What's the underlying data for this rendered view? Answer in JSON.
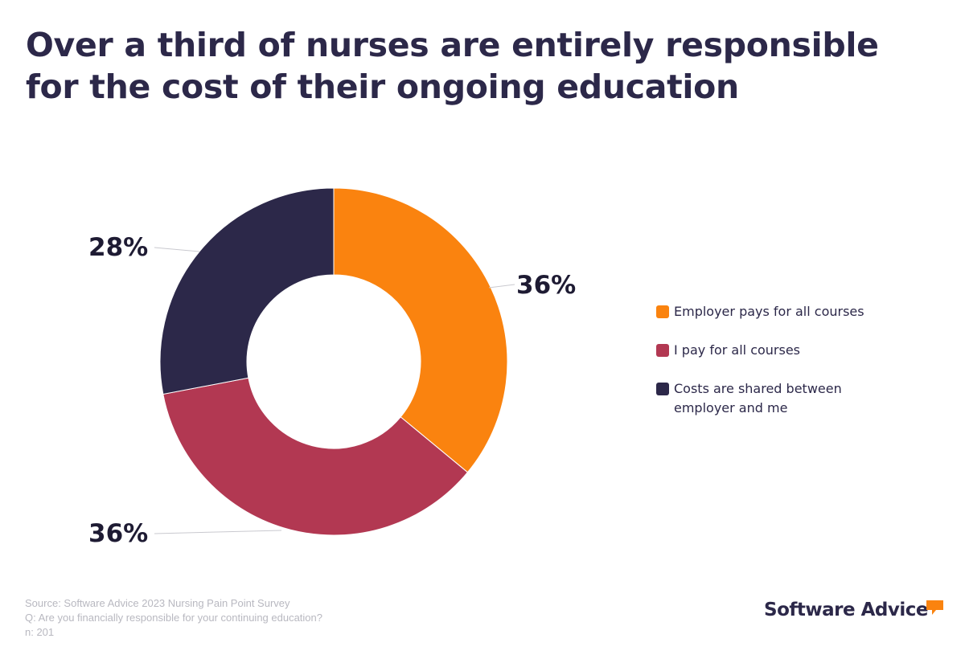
{
  "title": {
    "line1": "Over a third of nurses are entirely responsible",
    "line2": "for the cost of their ongoing education"
  },
  "chart_data": {
    "type": "pie",
    "variant": "donut",
    "categories": [
      "Employer pays for all courses",
      "I pay for all courses",
      "Costs are shared between employer and me"
    ],
    "values": [
      36,
      36,
      28
    ],
    "data_labels": [
      "36%",
      "36%",
      "28%"
    ],
    "colors": [
      "#fa830f",
      "#b23852",
      "#2c2849"
    ],
    "legend_position": "right"
  },
  "legend": {
    "items": [
      {
        "label": "Employer pays for all courses",
        "color": "#fa830f"
      },
      {
        "label": "I pay for all courses",
        "color": "#b23852"
      },
      {
        "label": "Costs are shared between employer and me",
        "color": "#2c2849"
      }
    ]
  },
  "footer": {
    "source": "Source: Software Advice 2023 Nursing Pain Point Survey",
    "question": "Q: Are you financially responsible for your continuing education?",
    "n": "n: 201"
  },
  "brand": {
    "name": "Software Advice",
    "logo_icon": "speech-bubble-icon",
    "logo_color": "#fa830f"
  }
}
